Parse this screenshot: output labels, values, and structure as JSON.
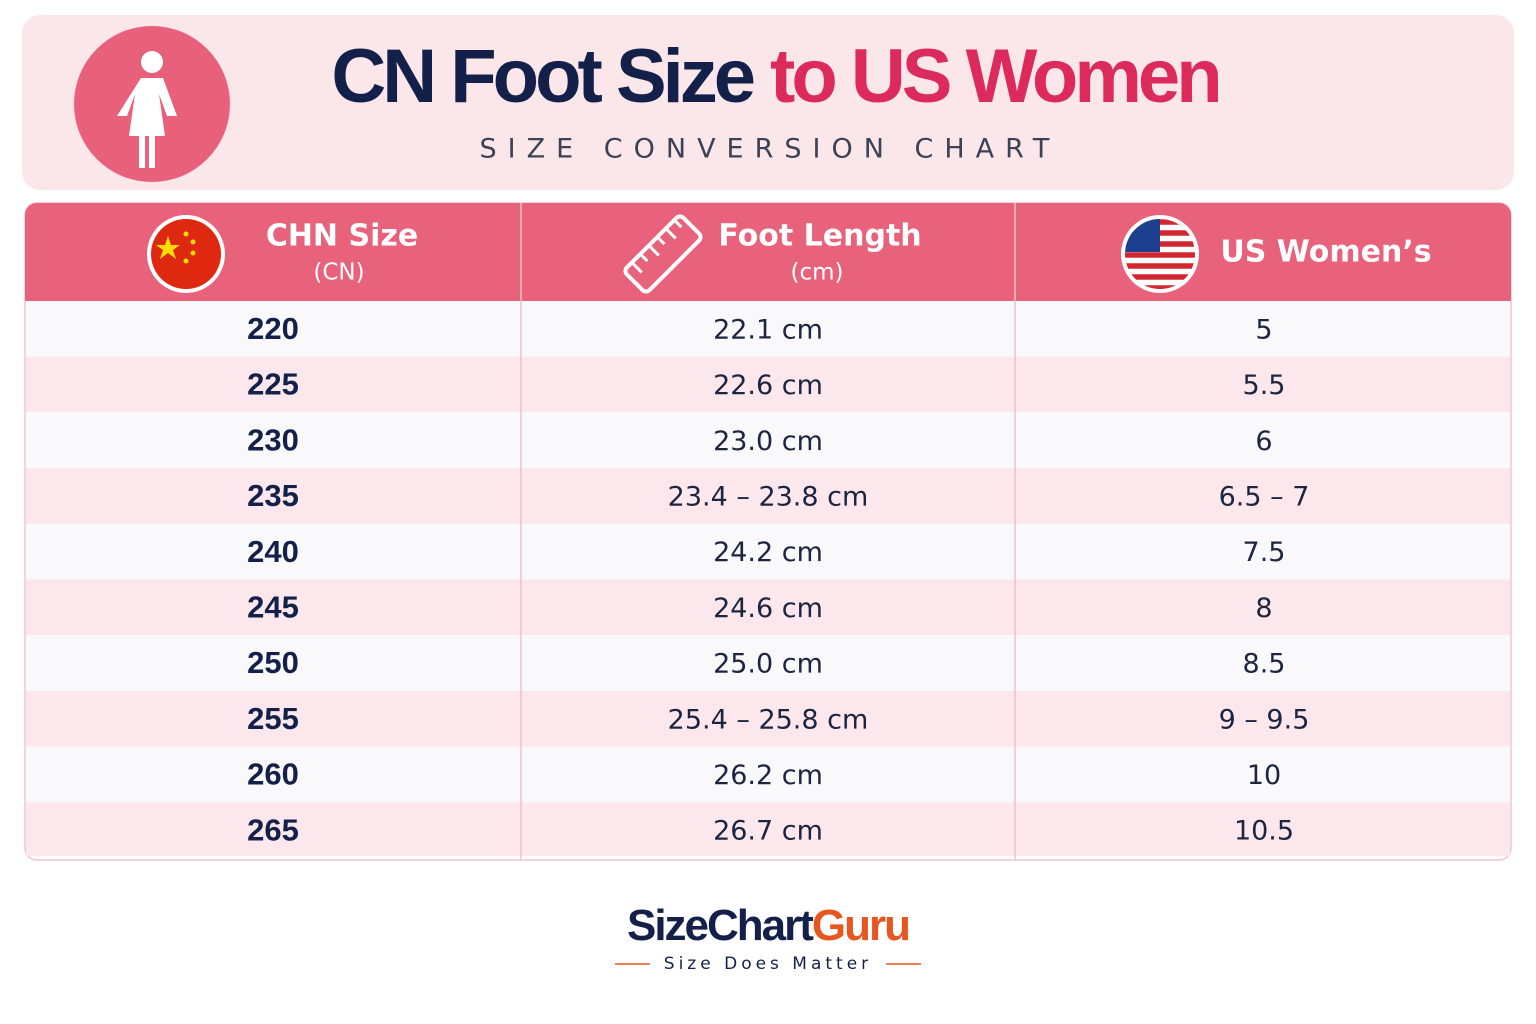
{
  "header": {
    "title_part1": "CN Foot Size",
    "title_part2": "to US Women",
    "subtitle": "SIZE CONVERSION CHART"
  },
  "table": {
    "headers": [
      {
        "title": "CHN Size",
        "subtitle": "(CN)"
      },
      {
        "title": "Foot Length",
        "subtitle": "(cm)"
      },
      {
        "title": "US Women’s"
      }
    ],
    "rows": [
      [
        "220",
        "22.1 cm",
        "5"
      ],
      [
        "225",
        "22.6 cm",
        "5.5"
      ],
      [
        "230",
        "23.0 cm",
        "6"
      ],
      [
        "235",
        "23.4 – 23.8 cm",
        "6.5 – 7"
      ],
      [
        "240",
        "24.2 cm",
        "7.5"
      ],
      [
        "245",
        "24.6 cm",
        "8"
      ],
      [
        "250",
        "25.0 cm",
        "8.5"
      ],
      [
        "255",
        "25.4 – 25.8 cm",
        "9 – 9.5"
      ],
      [
        "260",
        "26.2 cm",
        "10"
      ],
      [
        "265",
        "26.7 cm",
        "10.5"
      ]
    ]
  },
  "footer": {
    "brand_part1": "SizeChart",
    "brand_part2": "Guru",
    "tagline": "Size Does Matter"
  }
}
